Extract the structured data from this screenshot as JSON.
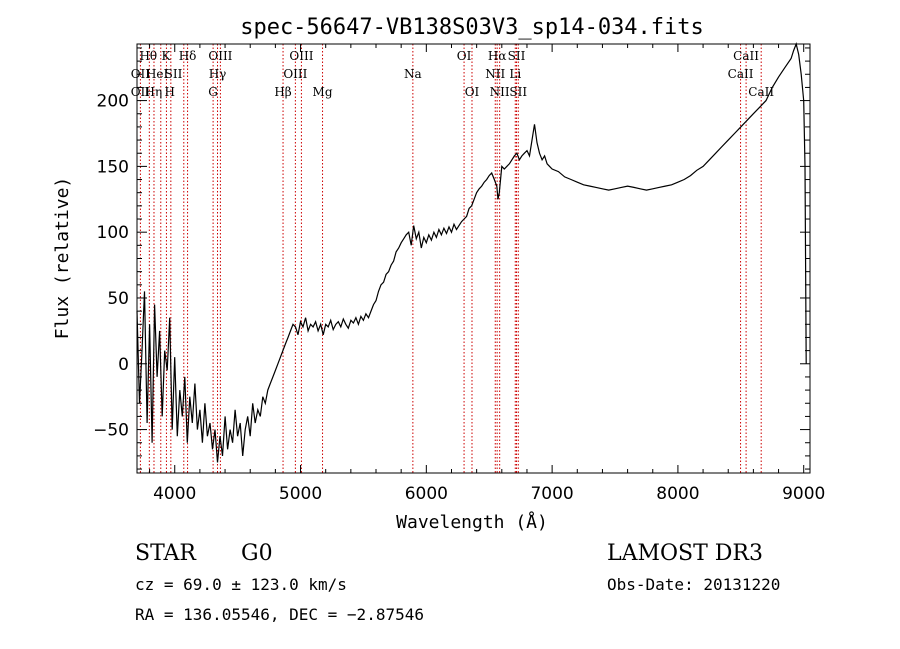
{
  "chart_data": {
    "type": "line",
    "title": "spec-56647-VB138S03V3_sp14-034.fits",
    "xlabel": "Wavelength (Å)",
    "ylabel": "Flux (relative)",
    "xlim": [
      3700,
      9050
    ],
    "ylim": [
      -83,
      243
    ],
    "xticks": [
      4000,
      5000,
      6000,
      7000,
      8000,
      9000
    ],
    "yticks": [
      -50,
      0,
      50,
      100,
      150,
      200
    ],
    "xtick_labels": [
      "4000",
      "5000",
      "6000",
      "7000",
      "8000",
      "9000"
    ],
    "ytick_labels": [
      "−50",
      "0",
      "50",
      "100",
      "150",
      "200"
    ],
    "series": [
      {
        "x": [
          3700,
          3720,
          3740,
          3760,
          3780,
          3800,
          3820,
          3840,
          3860,
          3880,
          3900,
          3920,
          3940,
          3960,
          3980,
          4000,
          4020,
          4040,
          4060,
          4080,
          4100,
          4120,
          4140,
          4160,
          4180,
          4200,
          4220,
          4240,
          4260,
          4280,
          4300,
          4320,
          4340,
          4360,
          4380,
          4400,
          4420,
          4440,
          4460,
          4480,
          4500,
          4520,
          4540,
          4560,
          4580,
          4600,
          4620,
          4640,
          4660,
          4680,
          4700,
          4720,
          4740,
          4760,
          4780,
          4800,
          4820,
          4840,
          4860,
          4880,
          4900,
          4920,
          4940,
          4960,
          4980,
          5000,
          5020,
          5040,
          5060,
          5080,
          5100,
          5120,
          5140,
          5160,
          5180,
          5200,
          5220,
          5240,
          5260,
          5280,
          5300,
          5320,
          5340,
          5360,
          5380,
          5400,
          5420,
          5440,
          5460,
          5480,
          5500,
          5520,
          5540,
          5560,
          5580,
          5600,
          5620,
          5640,
          5660,
          5680,
          5700,
          5720,
          5740,
          5760,
          5780,
          5800,
          5820,
          5840,
          5860,
          5880,
          5900,
          5920,
          5940,
          5960,
          5980,
          6000,
          6020,
          6040,
          6060,
          6080,
          6100,
          6120,
          6140,
          6160,
          6180,
          6200,
          6220,
          6240,
          6260,
          6280,
          6300,
          6320,
          6340,
          6360,
          6380,
          6400,
          6420,
          6440,
          6460,
          6480,
          6500,
          6520,
          6540,
          6560,
          6570,
          6580,
          6600,
          6620,
          6640,
          6660,
          6680,
          6700,
          6720,
          6740,
          6760,
          6780,
          6800,
          6820,
          6840,
          6860,
          6880,
          6900,
          6920,
          6940,
          6960,
          6980,
          7000,
          7050,
          7100,
          7150,
          7200,
          7250,
          7300,
          7350,
          7400,
          7450,
          7500,
          7550,
          7600,
          7650,
          7700,
          7750,
          7800,
          7850,
          7900,
          7950,
          8000,
          8050,
          8100,
          8150,
          8200,
          8250,
          8300,
          8350,
          8400,
          8450,
          8500,
          8550,
          8600,
          8650,
          8700,
          8750,
          8800,
          8850,
          8900,
          8920,
          8940,
          8960,
          8980,
          9000,
          9010,
          9020
        ],
        "y": [
          40,
          -30,
          10,
          55,
          -45,
          30,
          -60,
          45,
          -10,
          25,
          -40,
          10,
          -5,
          35,
          -50,
          5,
          -55,
          -20,
          -40,
          -10,
          -60,
          -25,
          -45,
          -15,
          -50,
          -35,
          -60,
          -30,
          -55,
          -45,
          -65,
          -50,
          -75,
          -55,
          -70,
          -40,
          -65,
          -50,
          -60,
          -35,
          -55,
          -45,
          -70,
          -50,
          -40,
          -55,
          -30,
          -45,
          -35,
          -40,
          -25,
          -30,
          -20,
          -15,
          -10,
          -5,
          0,
          5,
          10,
          15,
          20,
          25,
          30,
          28,
          22,
          32,
          28,
          35,
          25,
          30,
          28,
          32,
          25,
          30,
          22,
          30,
          28,
          33,
          26,
          30,
          32,
          28,
          34,
          30,
          27,
          33,
          31,
          35,
          30,
          36,
          33,
          38,
          35,
          40,
          45,
          48,
          55,
          60,
          62,
          68,
          70,
          75,
          78,
          85,
          88,
          92,
          95,
          98,
          100,
          90,
          105,
          95,
          100,
          88,
          96,
          92,
          98,
          94,
          100,
          96,
          102,
          98,
          103,
          99,
          104,
          100,
          106,
          102,
          105,
          108,
          110,
          112,
          118,
          120,
          125,
          130,
          133,
          135,
          138,
          140,
          143,
          145,
          140,
          135,
          125,
          130,
          150,
          148,
          150,
          152,
          155,
          158,
          160,
          155,
          158,
          160,
          162,
          158,
          170,
          182,
          168,
          160,
          155,
          158,
          152,
          150,
          148,
          146,
          142,
          140,
          138,
          136,
          135,
          134,
          133,
          132,
          133,
          134,
          135,
          134,
          133,
          132,
          133,
          134,
          135,
          136,
          138,
          140,
          143,
          147,
          150,
          155,
          160,
          165,
          170,
          175,
          180,
          185,
          190,
          195,
          200,
          210,
          218,
          225,
          232,
          238,
          243,
          235,
          220,
          200,
          150,
          0
        ]
      }
    ],
    "lines": [
      {
        "label": "Hθ",
        "x": 3798,
        "row": 0,
        "lx": 3790
      },
      {
        "label": "OII",
        "x": 3727,
        "row": 1,
        "lx": 3727
      },
      {
        "label": "OII",
        "x": 3727,
        "row": 2,
        "lx": 3727
      },
      {
        "label": "Hη",
        "x": 3835,
        "row": 2,
        "lx": 3830
      },
      {
        "label": "HeI",
        "x": 3889,
        "row": 1,
        "lx": 3860
      },
      {
        "label": "K",
        "x": 3934,
        "row": 0,
        "lx": 3930
      },
      {
        "label": "H",
        "x": 3969,
        "row": 2,
        "lx": 3960
      },
      {
        "label": "SII",
        "x": 4072,
        "row": 1,
        "lx": 3990
      },
      {
        "label": "Hδ",
        "x": 4102,
        "row": 0,
        "lx": 4102
      },
      {
        "label": "OIII",
        "x": 4363,
        "row": 0,
        "lx": 4363
      },
      {
        "label": "Hγ",
        "x": 4340,
        "row": 1,
        "lx": 4340
      },
      {
        "label": "G",
        "x": 4305,
        "row": 2,
        "lx": 4305
      },
      {
        "label": "Hβ",
        "x": 4861,
        "row": 2,
        "lx": 4861
      },
      {
        "label": "OIII",
        "x": 4959,
        "row": 1,
        "lx": 4959
      },
      {
        "label": "OIII",
        "x": 5007,
        "row": 0,
        "lx": 5007
      },
      {
        "label": "Mg",
        "x": 5175,
        "row": 2,
        "lx": 5175
      },
      {
        "label": "Na",
        "x": 5893,
        "row": 1,
        "lx": 5893
      },
      {
        "label": "OI",
        "x": 6300,
        "row": 0,
        "lx": 6300
      },
      {
        "label": "OI",
        "x": 6363,
        "row": 2,
        "lx": 6363
      },
      {
        "label": "Hα",
        "x": 6563,
        "row": 0,
        "lx": 6563
      },
      {
        "label": "NII",
        "x": 6548,
        "row": 1,
        "lx": 6548
      },
      {
        "label": "NII",
        "x": 6583,
        "row": 2,
        "lx": 6583
      },
      {
        "label": "SII",
        "x": 6717,
        "row": 0,
        "lx": 6717
      },
      {
        "label": "Li",
        "x": 6707,
        "row": 1,
        "lx": 6707
      },
      {
        "label": "SII",
        "x": 6731,
        "row": 2,
        "lx": 6731
      },
      {
        "label": "CaII",
        "x": 8498,
        "row": 1,
        "lx": 8498
      },
      {
        "label": "CaII",
        "x": 8542,
        "row": 0,
        "lx": 8542
      },
      {
        "label": "CaII",
        "x": 8662,
        "row": 2,
        "lx": 8662
      }
    ]
  },
  "info": {
    "class_label": "STAR",
    "subclass": "G0",
    "survey": "LAMOST DR3",
    "cz_line": "cz = 69.0 ± 123.0 km/s",
    "obs_date": "Obs-Date: 20131220",
    "radec_line": "RA = 136.05546, DEC =  −2.87546"
  },
  "colors": {
    "spectrum": "#000000",
    "line_marker": "#cc0000",
    "text": "#000000"
  }
}
